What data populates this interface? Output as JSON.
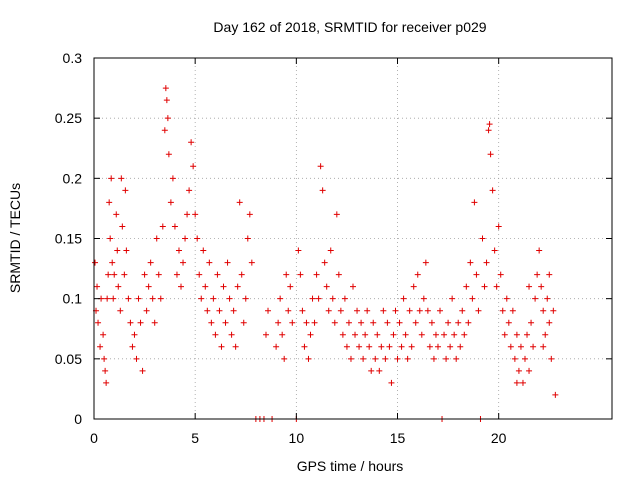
{
  "chart_data": {
    "type": "scatter",
    "title": "Day 162 of 2018, SRMTID for receiver p029",
    "xlabel": "GPS time / hours",
    "ylabel": "SRMTID / TECUs",
    "xlim": [
      0,
      25.6
    ],
    "ylim": [
      0,
      0.3
    ],
    "x_ticks": [
      0,
      5,
      10,
      15,
      20
    ],
    "x_tick_labels": [
      "0",
      "5",
      "10",
      "15",
      "20"
    ],
    "y_ticks": [
      0,
      0.05,
      0.1,
      0.15,
      0.2,
      0.25,
      0.3
    ],
    "y_tick_labels": [
      "0",
      "0.05",
      "0.1",
      "0.15",
      "0.2",
      "0.25",
      "0.3"
    ],
    "grid": true,
    "marker": "plus",
    "color": "#e00000",
    "series": [
      {
        "name": "SRMTID",
        "points": [
          [
            0.05,
            0.13
          ],
          [
            0.1,
            0.09
          ],
          [
            0.15,
            0.11
          ],
          [
            0.2,
            0.08
          ],
          [
            0.3,
            0.06
          ],
          [
            0.35,
            0.1
          ],
          [
            0.45,
            0.07
          ],
          [
            0.5,
            0.05
          ],
          [
            0.55,
            0.04
          ],
          [
            0.6,
            0.03
          ],
          [
            0.65,
            0.1
          ],
          [
            0.7,
            0.12
          ],
          [
            0.75,
            0.18
          ],
          [
            0.8,
            0.15
          ],
          [
            0.85,
            0.2
          ],
          [
            0.9,
            0.13
          ],
          [
            0.95,
            0.1
          ],
          [
            1.0,
            0.12
          ],
          [
            1.1,
            0.17
          ],
          [
            1.15,
            0.14
          ],
          [
            1.2,
            0.11
          ],
          [
            1.3,
            0.09
          ],
          [
            1.35,
            0.2
          ],
          [
            1.4,
            0.16
          ],
          [
            1.5,
            0.12
          ],
          [
            1.55,
            0.19
          ],
          [
            1.6,
            0.14
          ],
          [
            1.7,
            0.1
          ],
          [
            1.8,
            0.08
          ],
          [
            1.9,
            0.06
          ],
          [
            2.0,
            0.07
          ],
          [
            2.1,
            0.05
          ],
          [
            2.2,
            0.1
          ],
          [
            2.3,
            0.08
          ],
          [
            2.4,
            0.04
          ],
          [
            2.5,
            0.12
          ],
          [
            2.6,
            0.09
          ],
          [
            2.7,
            0.11
          ],
          [
            2.8,
            0.13
          ],
          [
            2.9,
            0.1
          ],
          [
            3.0,
            0.08
          ],
          [
            3.1,
            0.15
          ],
          [
            3.2,
            0.12
          ],
          [
            3.3,
            0.1
          ],
          [
            3.4,
            0.16
          ],
          [
            3.5,
            0.24
          ],
          [
            3.55,
            0.275
          ],
          [
            3.6,
            0.265
          ],
          [
            3.65,
            0.25
          ],
          [
            3.7,
            0.22
          ],
          [
            3.8,
            0.18
          ],
          [
            3.9,
            0.2
          ],
          [
            4.0,
            0.16
          ],
          [
            4.1,
            0.12
          ],
          [
            4.2,
            0.14
          ],
          [
            4.3,
            0.11
          ],
          [
            4.4,
            0.13
          ],
          [
            4.5,
            0.15
          ],
          [
            4.6,
            0.17
          ],
          [
            4.7,
            0.19
          ],
          [
            4.8,
            0.23
          ],
          [
            4.9,
            0.21
          ],
          [
            5.0,
            0.17
          ],
          [
            5.1,
            0.15
          ],
          [
            5.2,
            0.12
          ],
          [
            5.3,
            0.1
          ],
          [
            5.4,
            0.14
          ],
          [
            5.5,
            0.11
          ],
          [
            5.6,
            0.09
          ],
          [
            5.7,
            0.13
          ],
          [
            5.8,
            0.08
          ],
          [
            5.9,
            0.1
          ],
          [
            6.0,
            0.07
          ],
          [
            6.1,
            0.12
          ],
          [
            6.2,
            0.09
          ],
          [
            6.3,
            0.06
          ],
          [
            6.4,
            0.11
          ],
          [
            6.5,
            0.08
          ],
          [
            6.6,
            0.13
          ],
          [
            6.7,
            0.1
          ],
          [
            6.8,
            0.07
          ],
          [
            6.9,
            0.09
          ],
          [
            7.0,
            0.06
          ],
          [
            7.1,
            0.11
          ],
          [
            7.2,
            0.18
          ],
          [
            7.3,
            0.12
          ],
          [
            7.4,
            0.08
          ],
          [
            7.5,
            0.1
          ],
          [
            7.6,
            0.15
          ],
          [
            7.7,
            0.17
          ],
          [
            7.8,
            0.13
          ],
          [
            8.0,
            0.0
          ],
          [
            8.2,
            0.0
          ],
          [
            8.4,
            0.0
          ],
          [
            8.5,
            0.07
          ],
          [
            8.6,
            0.09
          ],
          [
            8.8,
            0.0
          ],
          [
            9.0,
            0.06
          ],
          [
            9.1,
            0.08
          ],
          [
            9.2,
            0.1
          ],
          [
            9.3,
            0.07
          ],
          [
            9.4,
            0.05
          ],
          [
            9.5,
            0.12
          ],
          [
            9.6,
            0.09
          ],
          [
            9.7,
            0.11
          ],
          [
            9.8,
            0.08
          ],
          [
            10.0,
            0.0
          ],
          [
            10.1,
            0.14
          ],
          [
            10.2,
            0.12
          ],
          [
            10.3,
            0.09
          ],
          [
            10.4,
            0.06
          ],
          [
            10.5,
            0.08
          ],
          [
            10.6,
            0.05
          ],
          [
            10.7,
            0.07
          ],
          [
            10.8,
            0.1
          ],
          [
            10.9,
            0.08
          ],
          [
            11.0,
            0.12
          ],
          [
            11.1,
            0.1
          ],
          [
            11.2,
            0.21
          ],
          [
            11.3,
            0.19
          ],
          [
            11.4,
            0.13
          ],
          [
            11.5,
            0.11
          ],
          [
            11.6,
            0.09
          ],
          [
            11.7,
            0.14
          ],
          [
            11.8,
            0.1
          ],
          [
            11.9,
            0.08
          ],
          [
            12.0,
            0.17
          ],
          [
            12.1,
            0.12
          ],
          [
            12.2,
            0.09
          ],
          [
            12.3,
            0.07
          ],
          [
            12.4,
            0.1
          ],
          [
            12.5,
            0.06
          ],
          [
            12.6,
            0.08
          ],
          [
            12.7,
            0.05
          ],
          [
            12.8,
            0.11
          ],
          [
            12.9,
            0.07
          ],
          [
            13.0,
            0.09
          ],
          [
            13.1,
            0.06
          ],
          [
            13.2,
            0.08
          ],
          [
            13.3,
            0.05
          ],
          [
            13.4,
            0.07
          ],
          [
            13.5,
            0.09
          ],
          [
            13.6,
            0.06
          ],
          [
            13.7,
            0.04
          ],
          [
            13.8,
            0.08
          ],
          [
            13.9,
            0.05
          ],
          [
            14.0,
            0.07
          ],
          [
            14.1,
            0.04
          ],
          [
            14.2,
            0.06
          ],
          [
            14.3,
            0.09
          ],
          [
            14.4,
            0.05
          ],
          [
            14.5,
            0.08
          ],
          [
            14.6,
            0.06
          ],
          [
            14.7,
            0.03
          ],
          [
            14.8,
            0.07
          ],
          [
            14.9,
            0.09
          ],
          [
            15.0,
            0.05
          ],
          [
            15.1,
            0.08
          ],
          [
            15.2,
            0.06
          ],
          [
            15.3,
            0.1
          ],
          [
            15.4,
            0.07
          ],
          [
            15.5,
            0.05
          ],
          [
            15.6,
            0.09
          ],
          [
            15.7,
            0.06
          ],
          [
            15.8,
            0.11
          ],
          [
            15.9,
            0.08
          ],
          [
            16.0,
            0.12
          ],
          [
            16.1,
            0.09
          ],
          [
            16.2,
            0.07
          ],
          [
            16.3,
            0.1
          ],
          [
            16.4,
            0.13
          ],
          [
            16.5,
            0.09
          ],
          [
            16.6,
            0.06
          ],
          [
            16.7,
            0.08
          ],
          [
            16.8,
            0.05
          ],
          [
            16.9,
            0.07
          ],
          [
            17.0,
            0.06
          ],
          [
            17.1,
            0.09
          ],
          [
            17.2,
            0.0
          ],
          [
            17.3,
            0.07
          ],
          [
            17.4,
            0.05
          ],
          [
            17.5,
            0.08
          ],
          [
            17.6,
            0.06
          ],
          [
            17.7,
            0.1
          ],
          [
            17.8,
            0.07
          ],
          [
            17.9,
            0.05
          ],
          [
            18.0,
            0.08
          ],
          [
            18.1,
            0.06
          ],
          [
            18.2,
            0.09
          ],
          [
            18.3,
            0.07
          ],
          [
            18.4,
            0.11
          ],
          [
            18.5,
            0.08
          ],
          [
            18.6,
            0.13
          ],
          [
            18.7,
            0.1
          ],
          [
            18.8,
            0.18
          ],
          [
            18.9,
            0.12
          ],
          [
            19.0,
            0.09
          ],
          [
            19.1,
            0.0
          ],
          [
            19.2,
            0.15
          ],
          [
            19.3,
            0.11
          ],
          [
            19.4,
            0.13
          ],
          [
            19.5,
            0.24
          ],
          [
            19.55,
            0.245
          ],
          [
            19.6,
            0.22
          ],
          [
            19.7,
            0.19
          ],
          [
            19.8,
            0.14
          ],
          [
            19.9,
            0.11
          ],
          [
            20.0,
            0.16
          ],
          [
            20.1,
            0.12
          ],
          [
            20.2,
            0.09
          ],
          [
            20.3,
            0.07
          ],
          [
            20.4,
            0.1
          ],
          [
            20.5,
            0.08
          ],
          [
            20.6,
            0.06
          ],
          [
            20.7,
            0.09
          ],
          [
            20.8,
            0.05
          ],
          [
            20.9,
            0.07
          ],
          [
            21.0,
            0.04
          ],
          [
            21.1,
            0.06
          ],
          [
            21.2,
            0.03
          ],
          [
            21.3,
            0.05
          ],
          [
            21.4,
            0.07
          ],
          [
            21.5,
            0.04
          ],
          [
            21.6,
            0.08
          ],
          [
            21.7,
            0.06
          ],
          [
            21.8,
            0.1
          ],
          [
            21.9,
            0.12
          ],
          [
            22.0,
            0.14
          ],
          [
            22.1,
            0.11
          ],
          [
            22.2,
            0.09
          ],
          [
            22.3,
            0.07
          ],
          [
            22.4,
            0.1
          ],
          [
            22.5,
            0.08
          ],
          [
            22.6,
            0.05
          ],
          [
            22.7,
            0.09
          ],
          [
            22.8,
            0.02
          ],
          [
            22.5,
            0.12
          ],
          [
            22.2,
            0.06
          ],
          [
            21.5,
            0.11
          ],
          [
            20.9,
            0.03
          ]
        ]
      }
    ]
  }
}
